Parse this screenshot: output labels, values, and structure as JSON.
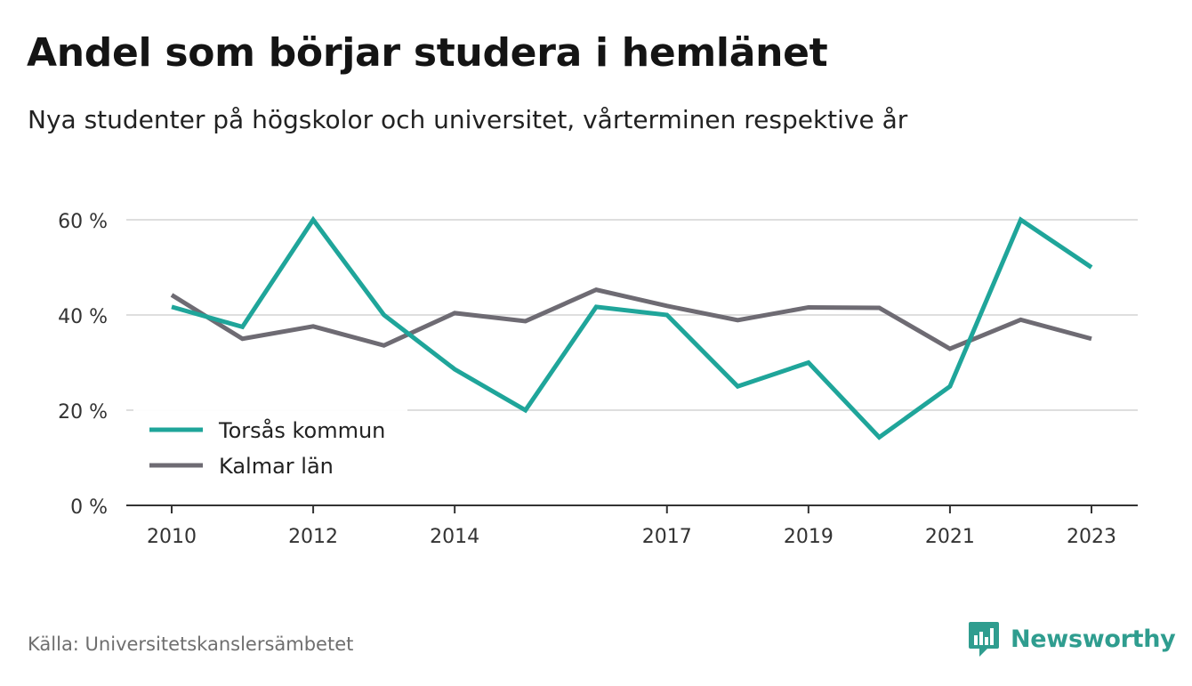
{
  "header": {
    "title": "Andel som börjar studera i hemlänet",
    "subtitle": "Nya studenter på högskolor och universitet, vårterminen respektive år"
  },
  "footer": {
    "source": "Källa: Universitetskanslersämbetet",
    "brand": "Newsworthy"
  },
  "colors": {
    "series_1": "#1fa59a",
    "series_2": "#6e6b73",
    "grid": "#dedede",
    "axis": "#333333",
    "brand": "#2f9d8f"
  },
  "chart_data": {
    "type": "line",
    "x": [
      2010,
      2011,
      2012,
      2013,
      2014,
      2015,
      2016,
      2017,
      2018,
      2019,
      2020,
      2021,
      2022,
      2023
    ],
    "x_tick_labels": [
      "2010",
      "2012",
      "2014",
      "2017",
      "2019",
      "2021",
      "2023"
    ],
    "x_tick_values": [
      2010,
      2012,
      2014,
      2017,
      2019,
      2021,
      2023
    ],
    "y_tick_values": [
      0,
      20,
      40,
      60
    ],
    "y_tick_labels": [
      "0 %",
      "20 %",
      "40 %",
      "60 %"
    ],
    "ylim": [
      0,
      60
    ],
    "grid": true,
    "legend_position": "bottom-left",
    "series": [
      {
        "name": "Torsås kommun",
        "color": "#1fa59a",
        "values": [
          41.7,
          37.5,
          60.0,
          40.0,
          28.6,
          20.0,
          41.7,
          40.0,
          25.0,
          30.0,
          14.3,
          25.0,
          60.0,
          50.0
        ]
      },
      {
        "name": "Kalmar län",
        "color": "#6e6b73",
        "values": [
          44.2,
          35.0,
          37.6,
          33.6,
          40.4,
          38.7,
          45.3,
          41.9,
          38.9,
          41.6,
          41.5,
          32.9,
          39.0,
          35.0
        ]
      }
    ]
  }
}
